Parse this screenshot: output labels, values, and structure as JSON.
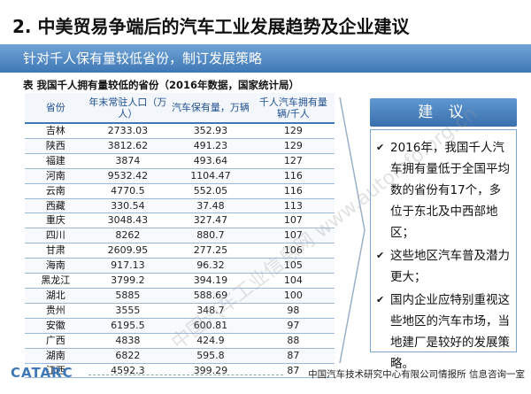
{
  "slide": {
    "title": "2. 中美贸易争端后的汽车工业发展趋势及企业建议",
    "subtitle": "针对千人保有量较低省份，制订发展策略"
  },
  "table": {
    "caption": "表 我国千人拥有量较低的省份（2016年数据，国家统计局）",
    "headers": [
      "省份",
      "年末常驻人口（万人）",
      "汽车保有量，万辆",
      "千人汽车拥有量辆/千人"
    ],
    "rows": [
      [
        "吉林",
        "2733.03",
        "352.93",
        "129"
      ],
      [
        "陕西",
        "3812.62",
        "491.23",
        "129"
      ],
      [
        "福建",
        "3874",
        "493.64",
        "127"
      ],
      [
        "河南",
        "9532.42",
        "1104.47",
        "116"
      ],
      [
        "云南",
        "4770.5",
        "552.05",
        "116"
      ],
      [
        "西藏",
        "330.54",
        "37.48",
        "113"
      ],
      [
        "重庆",
        "3048.43",
        "327.47",
        "107"
      ],
      [
        "四川",
        "8262",
        "880.7",
        "107"
      ],
      [
        "甘肃",
        "2609.95",
        "277.25",
        "106"
      ],
      [
        "海南",
        "917.13",
        "96.32",
        "105"
      ],
      [
        "黑龙江",
        "3799.2",
        "394.19",
        "104"
      ],
      [
        "湖北",
        "5885",
        "588.69",
        "100"
      ],
      [
        "贵州",
        "3555",
        "348.7",
        "98"
      ],
      [
        "安徽",
        "6195.5",
        "600.81",
        "97"
      ],
      [
        "广西",
        "4838",
        "424.9",
        "88"
      ],
      [
        "湖南",
        "6822",
        "595.8",
        "87"
      ],
      [
        "江西",
        "4592.3",
        "399.29",
        "87"
      ]
    ]
  },
  "advice": {
    "header": "建 议",
    "items": [
      "2016年，我国千人汽车拥有量低于全国平均数的省份有17个，多位于东北及中西部地区；",
      "这些地区汽车普及潜力更大；",
      "国内企业应特别重视这些地区的汽车市场，当地建厂是较好的发展策略。"
    ]
  },
  "watermark": "中国汽车工业信息网 www.autoinfo.org.cn",
  "footer": {
    "logo": "CATARC",
    "text": "中国汽车技术研究中心有限公司情报所 信息咨询一室"
  },
  "colors": {
    "accent": "#3f78b6",
    "header_text": "#1f4f8f"
  },
  "icons": {
    "bullet": "check-mark-icon"
  }
}
